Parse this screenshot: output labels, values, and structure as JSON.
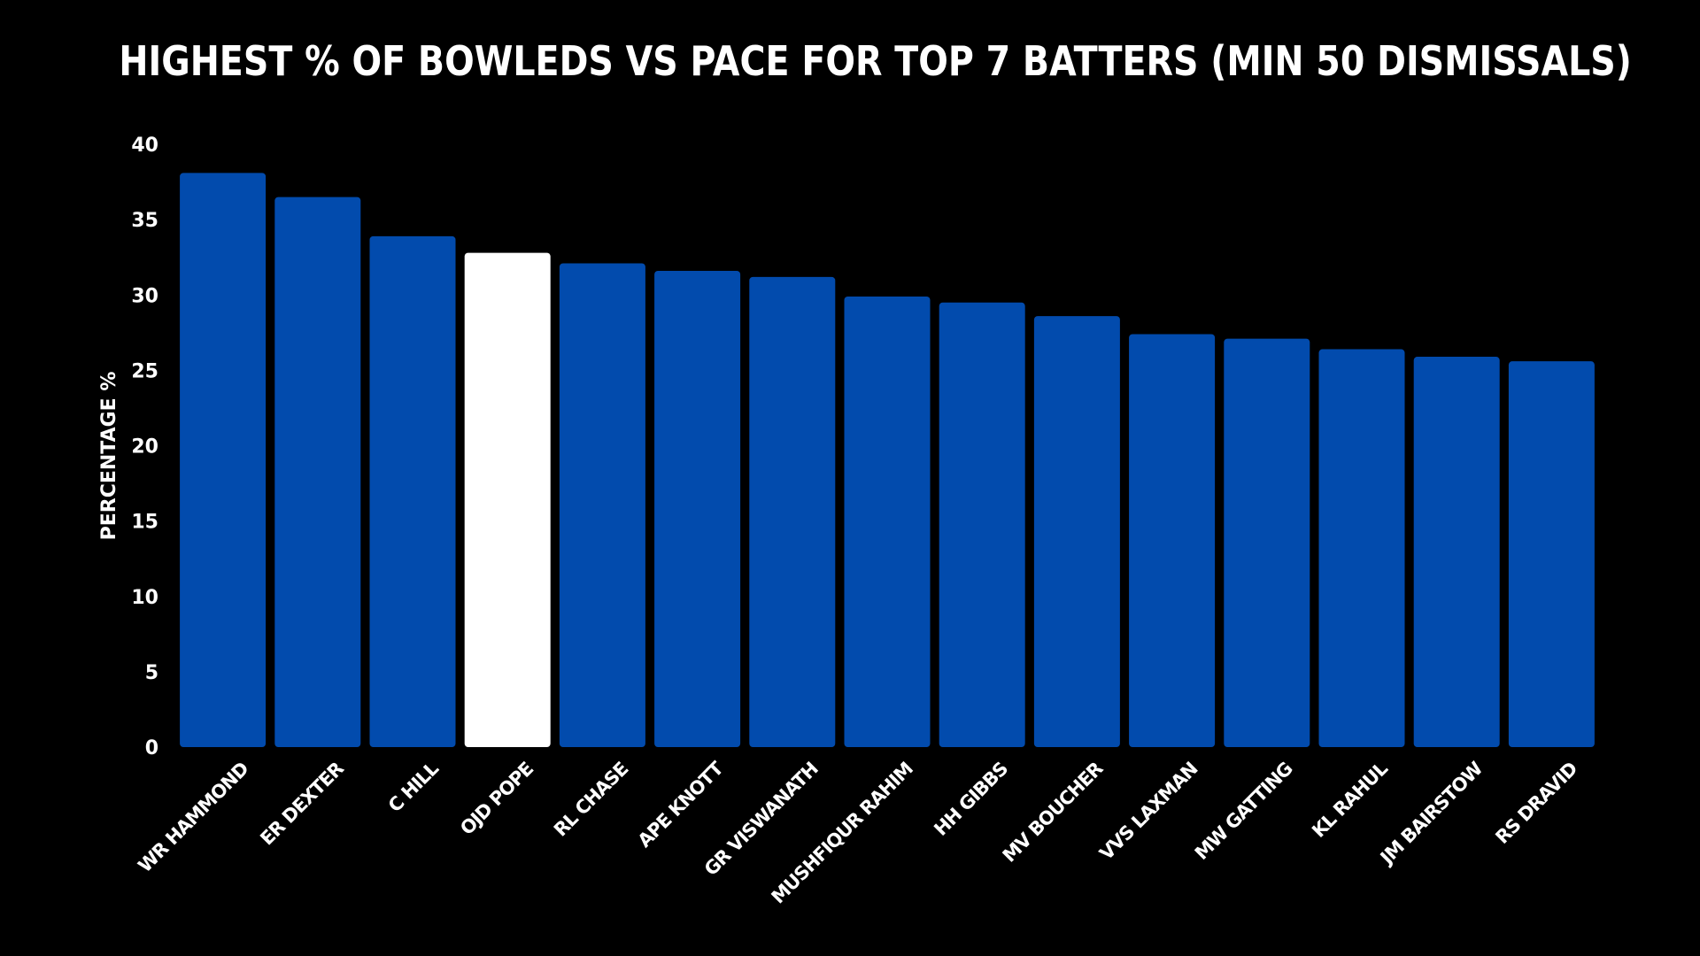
{
  "colors": {
    "background": "#000000",
    "bar": "#024BAD",
    "highlight_bar": "#FFFFFF",
    "text": "#FFFFFF"
  },
  "chart_data": {
    "type": "bar",
    "title": "HIGHEST % OF BOWLEDS VS PACE FOR TOP 7 BATTERS (MIN 50 DISMISSALS)",
    "xlabel": "",
    "ylabel": "PERCENTAGE %",
    "ylim": [
      0,
      40
    ],
    "yticks": [
      0,
      5,
      10,
      15,
      20,
      25,
      30,
      35,
      40
    ],
    "grid": false,
    "highlighted_category": "OJD POPE",
    "categories": [
      "WR HAMMOND",
      "ER DEXTER",
      "C HILL",
      "OJD POPE",
      "RL CHASE",
      "APE KNOTT",
      "GR VISWANATH",
      "MUSHFIQUR RAHIM",
      "HH GIBBS",
      "MV BOUCHER",
      "VVS LAXMAN",
      "MW GATTING",
      "KL RAHUL",
      "JM BAIRSTOW",
      "RS DRAVID"
    ],
    "values": [
      38.1,
      36.5,
      33.9,
      32.8,
      32.1,
      31.6,
      31.2,
      29.9,
      29.5,
      28.6,
      27.4,
      27.1,
      26.4,
      25.9,
      25.6
    ]
  }
}
